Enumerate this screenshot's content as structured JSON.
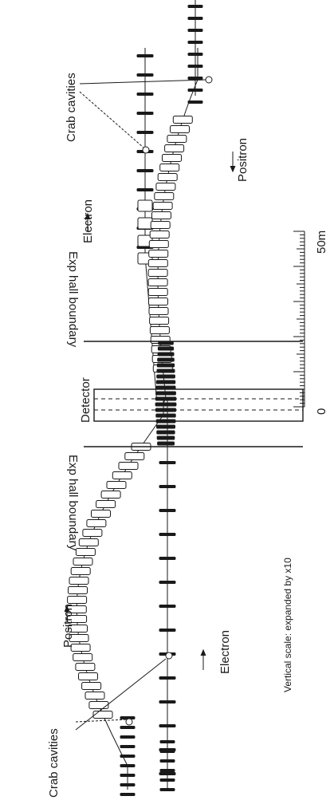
{
  "labels": {
    "crab_cavities_top": "Crab cavities",
    "crab_cavities_bottom": "Crab cavities",
    "electron_top": "Electron",
    "positron_top": "Positron",
    "electron_bottom": "Electron",
    "positron_bottom": "Positron",
    "exp_hall_upper": "Exp hall boundary",
    "exp_hall_lower": "Exp hall boundary",
    "detector": "Detector",
    "vertical_scale": "Vertical scale: expanded by x10"
  },
  "scale_bar": {
    "start_label": "0",
    "end_label": "50m"
  },
  "colors": {
    "ink": "#1a1a1a",
    "background": "#ffffff"
  }
}
